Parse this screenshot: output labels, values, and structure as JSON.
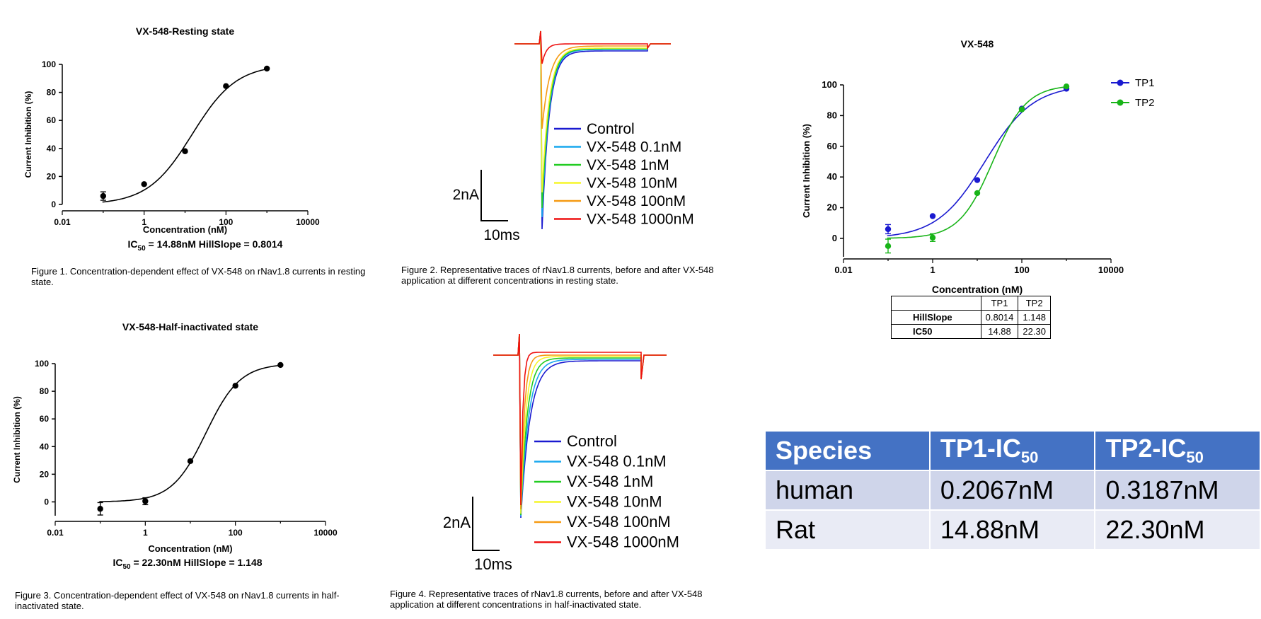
{
  "fig1": {
    "title": "VX-548-Resting state",
    "ylabel": "Current Inhibition (%)",
    "xlabel": "Concentration (nM)",
    "stats_prefix": "IC",
    "stats_sub": "50",
    "stats_rest": " = 14.88nM HillSlope = 0.8014",
    "caption": "Figure 1. Concentration-dependent effect of VX-548 on rNav1.8 currents in resting state."
  },
  "fig3": {
    "title": "VX-548-Half-inactivated state",
    "ylabel": "Current Inhibition (%)",
    "xlabel": "Concentration (nM)",
    "stats_prefix": "IC",
    "stats_sub": "50",
    "stats_rest": " = 22.30nM HillSlope = 1.148",
    "caption": "Figure 3. Concentration-dependent effect of VX-548 on rNav1.8 currents in half-inactivated state."
  },
  "fig2": {
    "caption": "Figure 2. Representative traces of rNav1.8 currents, before and after VX-548 application at different concentrations in resting state.",
    "scale_y": "2nA",
    "scale_x": "10ms"
  },
  "fig4": {
    "caption": "Figure 4. Representative traces of rNav1.8 currents, before and after VX-548 application at different concentrations in half-inactivated state.",
    "scale_y": "2nA",
    "scale_x": "10ms"
  },
  "trace_legend": [
    "Control",
    "VX-548 0.1nM",
    "VX-548 1nM",
    "VX-548 10nM",
    "VX-548 100nM",
    "VX-548 1000nM"
  ],
  "trace_colors": [
    "#1a1ad0",
    "#1aa8ee",
    "#22cc22",
    "#f5f52a",
    "#f59a12",
    "#ee1111"
  ],
  "combined": {
    "title": "VX-548",
    "ylabel": "Current Inhibition (%)",
    "xlabel": "Concentration (nM)",
    "legend": [
      "TP1",
      "TP2"
    ],
    "colors": [
      "#1a1ad0",
      "#18b418"
    ],
    "fit_header": [
      "",
      "TP1",
      "TP2"
    ],
    "fit_rows": [
      [
        "HillSlope",
        "0.8014",
        "1.148"
      ],
      [
        "IC50",
        "14.88",
        "22.30"
      ]
    ]
  },
  "summary": {
    "headers": [
      "Species",
      "TP1-IC",
      "TP2-IC"
    ],
    "header_sub": "50",
    "rows": [
      [
        "human",
        "0.2067nM",
        "0.3187nM"
      ],
      [
        "Rat",
        "14.88nM",
        "22.30nM"
      ]
    ]
  },
  "chart_data": [
    {
      "type": "scatter",
      "title": "VX-548-Resting state",
      "xlabel": "Concentration (nM)",
      "ylabel": "Current Inhibition (%)",
      "xscale": "log",
      "xlim": [
        0.01,
        10000
      ],
      "ylim": [
        0,
        100
      ],
      "xticks": [
        "0.01",
        "1",
        "100",
        "10000"
      ],
      "yticks": [
        "0",
        "20",
        "40",
        "60",
        "80",
        "100"
      ],
      "series": [
        {
          "x": [
            0.1,
            1,
            10,
            100,
            1000
          ],
          "y": [
            6,
            14.5,
            38,
            84.5,
            97
          ],
          "yerr": [
            3,
            0,
            0,
            0,
            0
          ],
          "ic50": 14.88,
          "hill": 0.8014
        }
      ]
    },
    {
      "type": "scatter",
      "title": "VX-548-Half-inactivated state",
      "xlabel": "Concentration (nM)",
      "ylabel": "Current Inhibition (%)",
      "xscale": "log",
      "xlim": [
        0.01,
        10000
      ],
      "ylim": [
        -10,
        100
      ],
      "xticks": [
        "0.01",
        "1",
        "100",
        "10000"
      ],
      "yticks": [
        "0",
        "20",
        "40",
        "60",
        "80",
        "100"
      ],
      "series": [
        {
          "x": [
            0.1,
            1,
            10,
            100,
            1000
          ],
          "y": [
            -5,
            0.5,
            29.5,
            84,
            99
          ],
          "yerr": [
            4.5,
            2.5,
            0,
            0,
            0
          ],
          "ic50": 22.3,
          "hill": 1.148
        }
      ]
    },
    {
      "type": "scatter",
      "title": "VX-548",
      "xlabel": "Concentration (nM)",
      "ylabel": "Current Inhibition (%)",
      "xscale": "log",
      "xlim": [
        0.01,
        10000
      ],
      "ylim": [
        -12,
        100
      ],
      "xticks": [
        "0.01",
        "1",
        "100",
        "10000"
      ],
      "yticks": [
        "0",
        "20",
        "40",
        "60",
        "80",
        "100"
      ],
      "legend_position": "top-right",
      "series": [
        {
          "name": "TP1",
          "x": [
            0.1,
            1,
            10,
            100,
            1000
          ],
          "y": [
            6,
            14.5,
            38,
            84.5,
            97.5
          ],
          "yerr": [
            3,
            0,
            0,
            0,
            0
          ],
          "ic50": 14.88,
          "hill": 0.8014
        },
        {
          "name": "TP2",
          "x": [
            0.1,
            1,
            10,
            100,
            1000
          ],
          "y": [
            -5,
            0.5,
            29.5,
            84,
            99
          ],
          "yerr": [
            4.5,
            2.5,
            0,
            0,
            0
          ],
          "ic50": 22.3,
          "hill": 1.148
        }
      ]
    }
  ]
}
